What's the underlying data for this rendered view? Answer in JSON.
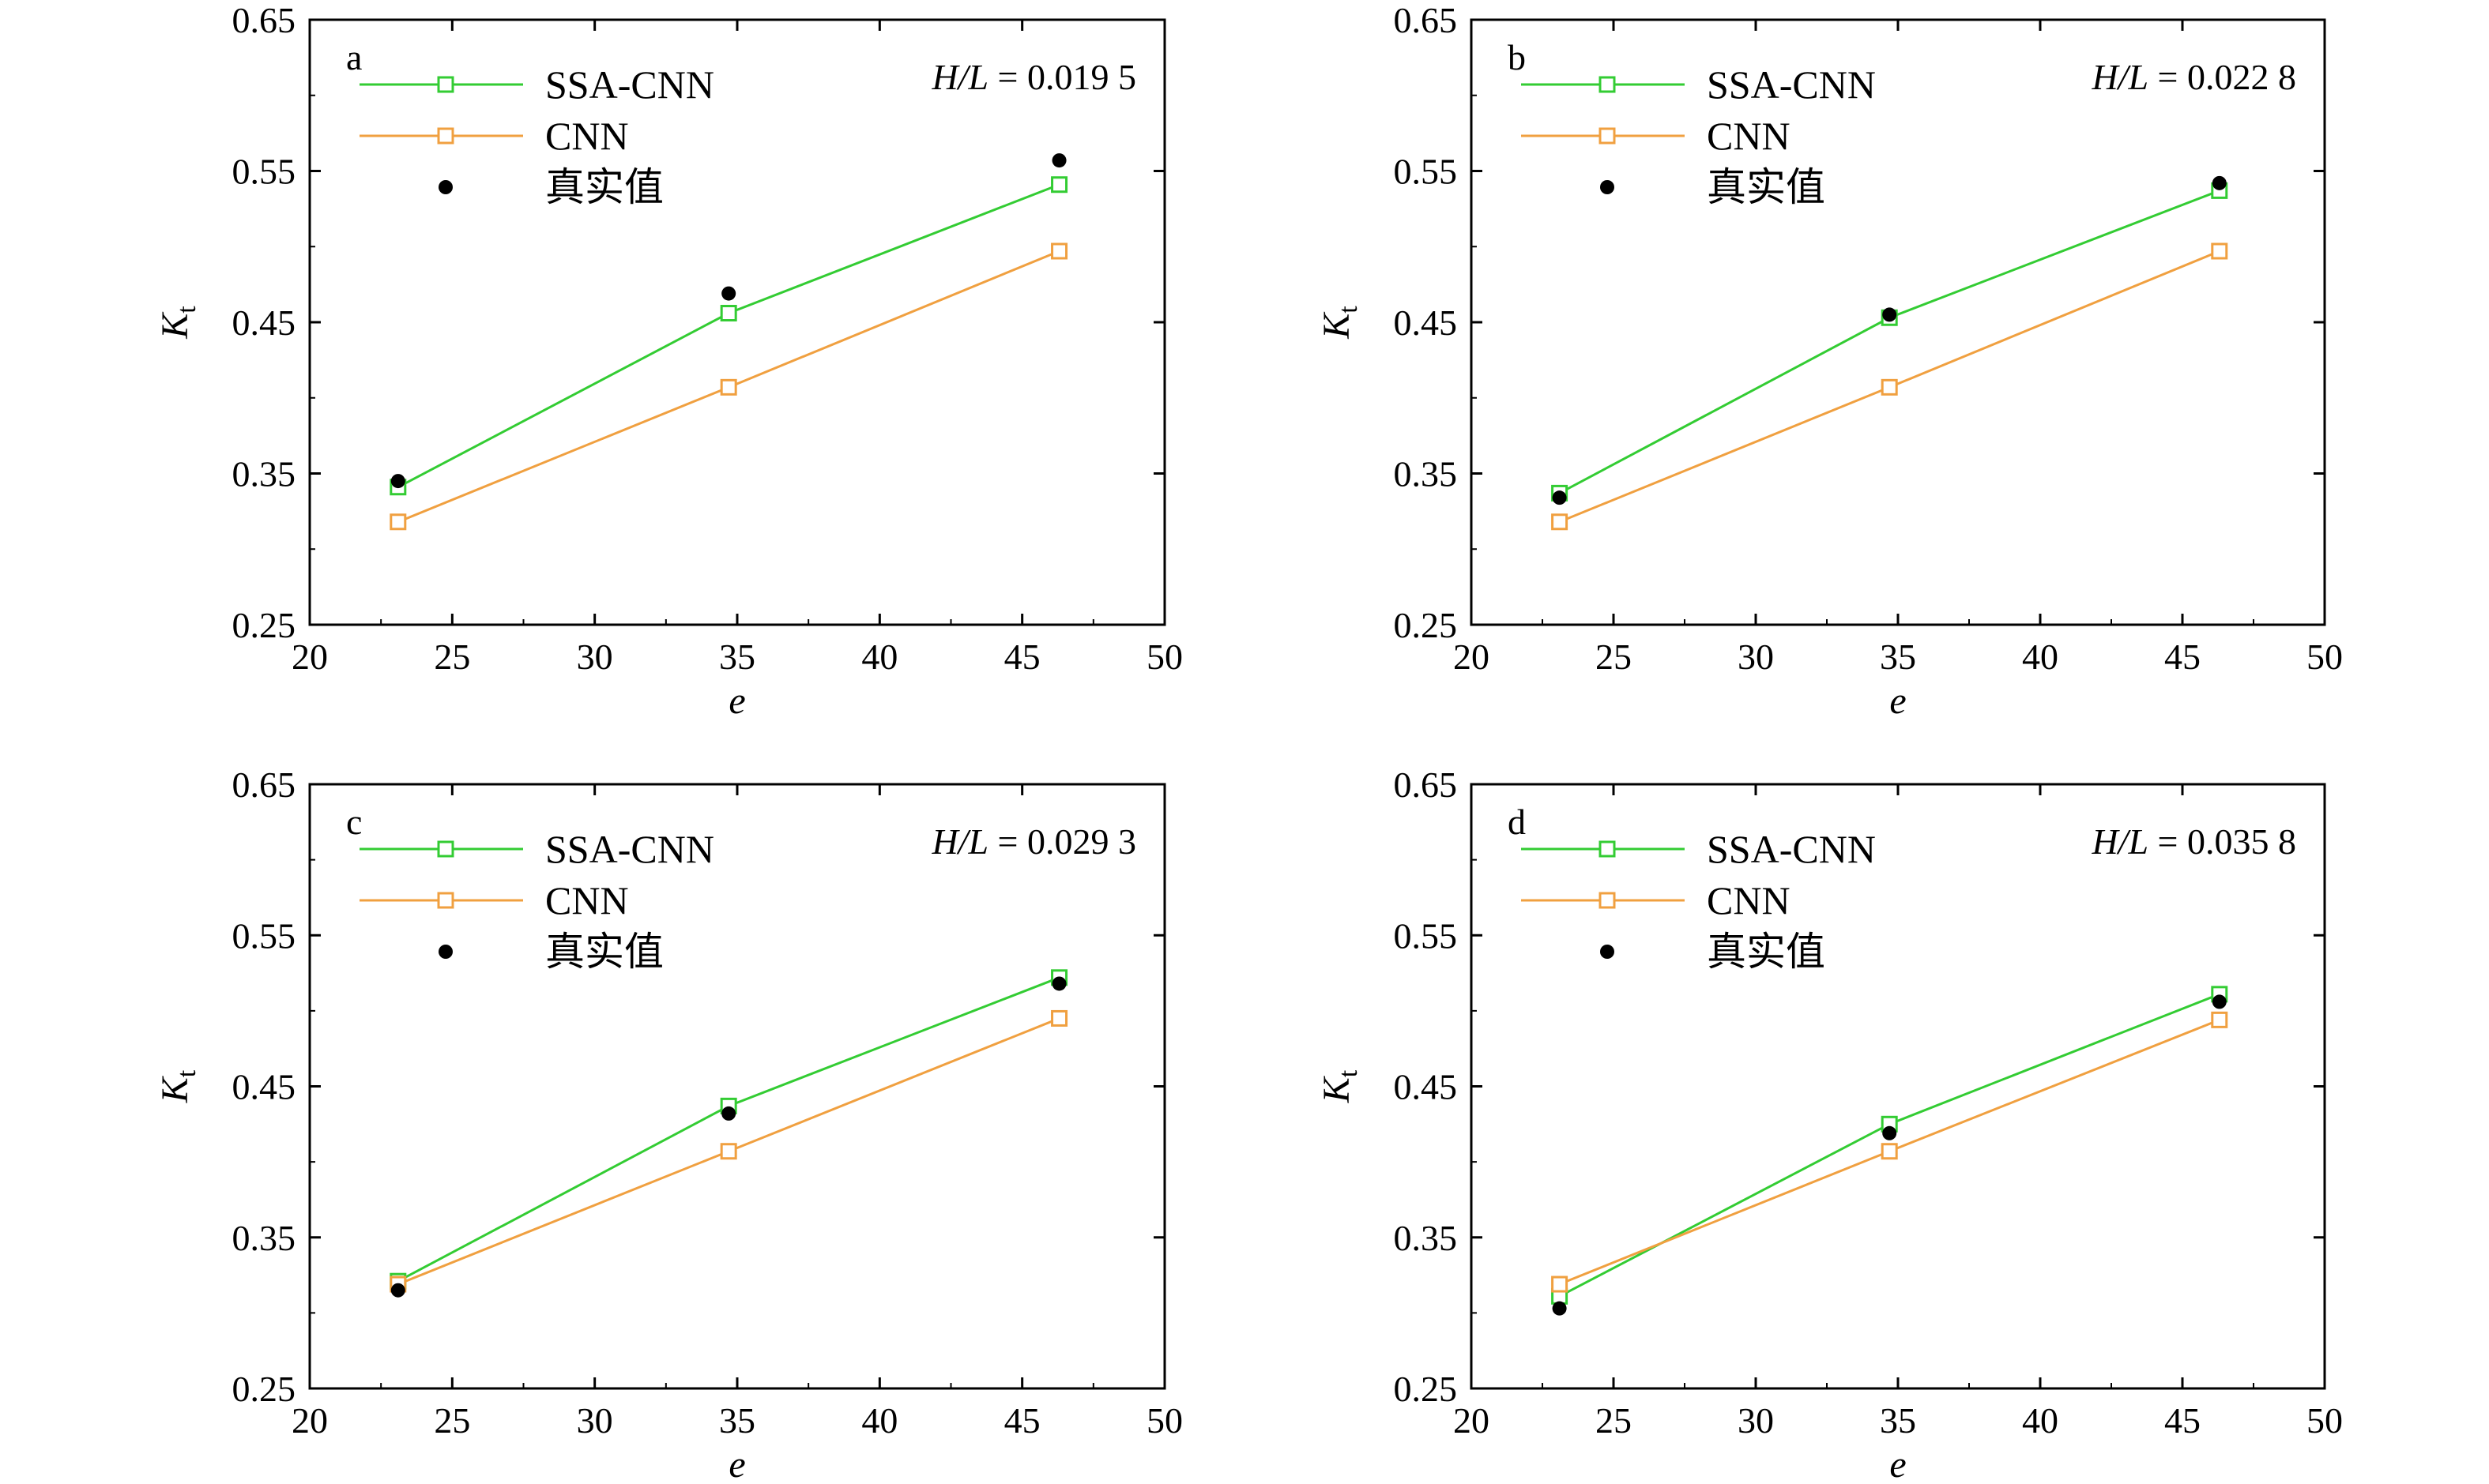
{
  "chart_data": [
    {
      "type": "line",
      "panel_label": "a",
      "annotation": {
        "var": "H/L",
        "eq": " = ",
        "value": "0.019 5"
      },
      "xlabel": "e",
      "ylabel": {
        "main": "K",
        "sub": "t"
      },
      "xlim": [
        20,
        50
      ],
      "ylim": [
        0.25,
        0.65
      ],
      "xticks": [
        20,
        25,
        30,
        35,
        40,
        45,
        50
      ],
      "yticks": [
        "0.25",
        "0.35",
        "0.45",
        "0.55",
        "0.65"
      ],
      "grid": false,
      "legend_position": "top-left",
      "x": [
        23.1,
        34.7,
        46.3
      ],
      "series": [
        {
          "name": "SSA-CNN",
          "style": "line-square",
          "color": "#33cc33",
          "values": [
            0.341,
            0.456,
            0.541
          ]
        },
        {
          "name": "CNN",
          "style": "line-square",
          "color": "#f0a040",
          "values": [
            0.318,
            0.407,
            0.497
          ]
        },
        {
          "name": "真实值",
          "style": "dot",
          "color": "#000000",
          "values": [
            0.345,
            0.469,
            0.557
          ]
        }
      ]
    },
    {
      "type": "line",
      "panel_label": "b",
      "annotation": {
        "var": "H/L",
        "eq": " = ",
        "value": "0.022 8"
      },
      "xlabel": "e",
      "ylabel": {
        "main": "K",
        "sub": "t"
      },
      "xlim": [
        20,
        50
      ],
      "ylim": [
        0.25,
        0.65
      ],
      "xticks": [
        20,
        25,
        30,
        35,
        40,
        45,
        50
      ],
      "yticks": [
        "0.25",
        "0.35",
        "0.45",
        "0.55",
        "0.65"
      ],
      "grid": false,
      "legend_position": "top-left",
      "x": [
        23.1,
        34.7,
        46.3
      ],
      "series": [
        {
          "name": "SSA-CNN",
          "style": "line-square",
          "color": "#33cc33",
          "values": [
            0.337,
            0.453,
            0.537
          ]
        },
        {
          "name": "CNN",
          "style": "line-square",
          "color": "#f0a040",
          "values": [
            0.318,
            0.407,
            0.497
          ]
        },
        {
          "name": "真实值",
          "style": "dot",
          "color": "#000000",
          "values": [
            0.334,
            0.455,
            0.542
          ]
        }
      ]
    },
    {
      "type": "line",
      "panel_label": "c",
      "annotation": {
        "var": "H/L",
        "eq": " = ",
        "value": "0.029 3"
      },
      "xlabel": "e",
      "ylabel": {
        "main": "K",
        "sub": "t"
      },
      "xlim": [
        20,
        50
      ],
      "ylim": [
        0.25,
        0.65
      ],
      "xticks": [
        20,
        25,
        30,
        35,
        40,
        45,
        50
      ],
      "yticks": [
        "0.25",
        "0.35",
        "0.45",
        "0.55",
        "0.65"
      ],
      "grid": false,
      "legend_position": "top-left",
      "x": [
        23.1,
        34.7,
        46.3
      ],
      "series": [
        {
          "name": "SSA-CNN",
          "style": "line-square",
          "color": "#33cc33",
          "values": [
            0.321,
            0.437,
            0.522
          ]
        },
        {
          "name": "CNN",
          "style": "line-square",
          "color": "#f0a040",
          "values": [
            0.319,
            0.407,
            0.495
          ]
        },
        {
          "name": "真实值",
          "style": "dot",
          "color": "#000000",
          "values": [
            0.315,
            0.432,
            0.518
          ]
        }
      ]
    },
    {
      "type": "line",
      "panel_label": "d",
      "annotation": {
        "var": "H/L",
        "eq": " = ",
        "value": "0.035 8"
      },
      "xlabel": "e",
      "ylabel": {
        "main": "K",
        "sub": "t"
      },
      "xlim": [
        20,
        50
      ],
      "ylim": [
        0.25,
        0.65
      ],
      "xticks": [
        20,
        25,
        30,
        35,
        40,
        45,
        50
      ],
      "yticks": [
        "0.25",
        "0.35",
        "0.45",
        "0.55",
        "0.65"
      ],
      "grid": false,
      "legend_position": "top-left",
      "x": [
        23.1,
        34.7,
        46.3
      ],
      "series": [
        {
          "name": "SSA-CNN",
          "style": "line-square",
          "color": "#33cc33",
          "values": [
            0.311,
            0.425,
            0.511
          ]
        },
        {
          "name": "CNN",
          "style": "line-square",
          "color": "#f0a040",
          "values": [
            0.319,
            0.407,
            0.494
          ]
        },
        {
          "name": "真实值",
          "style": "dot",
          "color": "#000000",
          "values": [
            0.303,
            0.419,
            0.506
          ]
        }
      ]
    }
  ]
}
